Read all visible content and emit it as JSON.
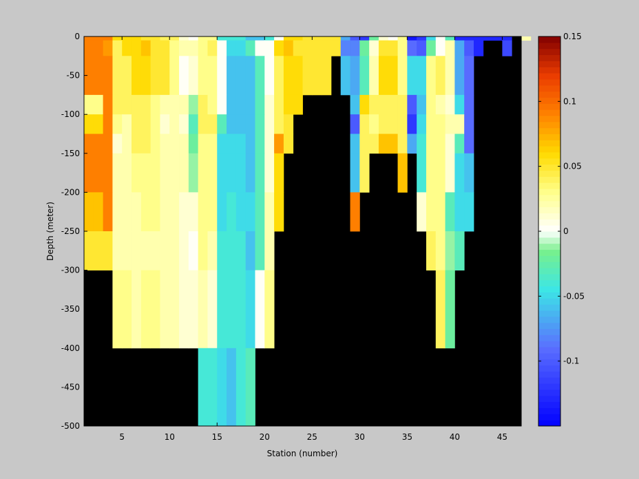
{
  "chart_data": {
    "type": "heatmap",
    "title": "",
    "xlabel": "Station (number)",
    "ylabel": "Depth (meter)",
    "xlim": [
      1,
      47
    ],
    "ylim": [
      -500,
      0
    ],
    "x_ticks": [
      5,
      10,
      15,
      20,
      25,
      30,
      35,
      40,
      45
    ],
    "y_ticks": [
      0,
      -50,
      -100,
      -150,
      -200,
      -250,
      -300,
      -350,
      -400,
      -450,
      -500
    ],
    "colorbar": {
      "range": [
        -0.15,
        0.15
      ],
      "ticks": [
        0.15,
        0.1,
        0.05,
        0,
        -0.05,
        -0.1
      ],
      "tick_labels": [
        "0.15",
        "0.1",
        "0.05",
        "0",
        "-0.05",
        "-0.1"
      ],
      "colormap": "jet-white-center",
      "levels": 64
    },
    "mask_color": "#000000",
    "grid": false,
    "row_depths": [
      -5,
      -25,
      -75,
      -100,
      -125,
      -150,
      -200,
      -250,
      -300,
      -400,
      -500
    ],
    "rows": [
      [
        0.09,
        0.09,
        0.09,
        0.06,
        0.06,
        0.06,
        0.05,
        0.05,
        0.04,
        0.04,
        0.01,
        0.0,
        0.03,
        0.03,
        -0.04,
        -0.04,
        -0.04,
        -0.06,
        -0.06,
        -0.04,
        0.0,
        0.06,
        0.06,
        0.05,
        0.05,
        0.05,
        0.05,
        -0.07,
        -0.1,
        -0.12,
        -0.02,
        0.01,
        0.0,
        0.03,
        -0.14,
        -0.12,
        -0.05,
        0.0,
        -0.03,
        -0.13,
        -0.13,
        -0.13,
        -0.13,
        -0.13,
        -0.13,
        null,
        0.02
      ],
      [
        0.09,
        0.09,
        0.08,
        0.04,
        0.06,
        0.06,
        0.07,
        0.05,
        0.05,
        0.03,
        0.02,
        0.02,
        0.03,
        0.04,
        0.0,
        -0.05,
        -0.05,
        -0.03,
        0.0,
        0.0,
        0.06,
        0.07,
        0.05,
        0.05,
        0.05,
        0.05,
        0.05,
        -0.08,
        -0.08,
        -0.02,
        0.01,
        0.05,
        0.05,
        0.03,
        -0.09,
        -0.1,
        -0.02,
        0.0,
        0.02,
        -0.07,
        -0.1,
        -0.13,
        null,
        null,
        -0.11,
        null,
        null
      ],
      [
        0.09,
        0.09,
        0.09,
        0.04,
        0.04,
        0.06,
        0.06,
        0.05,
        0.05,
        0.03,
        0.0,
        0.01,
        0.03,
        0.03,
        0.0,
        -0.06,
        -0.06,
        -0.06,
        -0.03,
        0.0,
        0.04,
        0.06,
        0.06,
        0.05,
        0.05,
        0.05,
        null,
        -0.06,
        -0.07,
        -0.03,
        0.02,
        0.06,
        0.06,
        0.03,
        -0.05,
        -0.05,
        0.03,
        0.04,
        0.02,
        -0.07,
        -0.09,
        null,
        null,
        null,
        null,
        null,
        null
      ],
      [
        0.03,
        0.03,
        0.09,
        0.04,
        0.04,
        0.04,
        0.04,
        0.03,
        0.02,
        0.02,
        0.02,
        -0.01,
        0.04,
        0.03,
        0.0,
        -0.06,
        -0.06,
        -0.06,
        -0.03,
        0.01,
        0.04,
        0.06,
        0.06,
        null,
        null,
        null,
        null,
        null,
        -0.06,
        0.06,
        0.04,
        0.04,
        0.04,
        0.04,
        -0.1,
        -0.06,
        0.03,
        0.02,
        0.01,
        -0.05,
        -0.09,
        null,
        null,
        null,
        null,
        null,
        null
      ],
      [
        0.06,
        0.06,
        0.09,
        0.03,
        0.02,
        0.04,
        0.04,
        0.03,
        0.01,
        0.02,
        0.01,
        -0.03,
        0.04,
        0.04,
        -0.03,
        -0.06,
        -0.06,
        -0.06,
        -0.03,
        0.01,
        0.04,
        0.05,
        null,
        null,
        null,
        null,
        null,
        null,
        -0.1,
        0.04,
        0.03,
        0.04,
        0.04,
        0.04,
        -0.12,
        -0.05,
        0.03,
        0.03,
        0.02,
        0.02,
        -0.09,
        null,
        null,
        null,
        null,
        null,
        null
      ],
      [
        0.09,
        0.09,
        0.09,
        0.01,
        0.02,
        0.04,
        0.04,
        0.03,
        0.02,
        0.02,
        0.02,
        -0.02,
        0.03,
        0.03,
        -0.05,
        -0.05,
        -0.05,
        -0.06,
        -0.03,
        0.01,
        0.08,
        0.05,
        null,
        null,
        null,
        null,
        null,
        null,
        -0.06,
        0.04,
        0.04,
        0.07,
        0.07,
        0.04,
        -0.07,
        -0.04,
        0.03,
        0.03,
        0.01,
        -0.03,
        -0.09,
        null,
        null,
        null,
        null,
        null,
        null
      ],
      [
        0.09,
        0.09,
        0.09,
        0.02,
        0.02,
        0.03,
        0.03,
        0.03,
        0.02,
        0.02,
        0.02,
        -0.01,
        0.03,
        0.03,
        -0.05,
        -0.05,
        -0.05,
        -0.06,
        -0.03,
        0.01,
        0.06,
        null,
        null,
        null,
        null,
        null,
        null,
        null,
        -0.06,
        0.04,
        null,
        null,
        null,
        0.07,
        null,
        -0.04,
        0.03,
        0.03,
        0.01,
        -0.05,
        -0.06,
        null,
        null,
        null,
        null,
        null,
        null
      ],
      [
        0.07,
        0.07,
        0.09,
        0.02,
        0.02,
        0.02,
        0.03,
        0.03,
        0.02,
        0.02,
        0.01,
        0.01,
        0.03,
        0.03,
        -0.05,
        -0.04,
        -0.05,
        -0.05,
        -0.03,
        0.02,
        0.06,
        null,
        null,
        null,
        null,
        null,
        null,
        null,
        0.09,
        null,
        null,
        null,
        null,
        null,
        null,
        0.01,
        0.03,
        0.03,
        -0.03,
        -0.05,
        -0.05,
        null,
        null,
        null,
        null,
        null,
        null
      ],
      [
        0.05,
        0.05,
        0.05,
        0.02,
        0.02,
        0.02,
        0.02,
        0.02,
        0.02,
        0.02,
        0.01,
        0.0,
        0.03,
        0.02,
        -0.04,
        -0.04,
        -0.04,
        -0.06,
        -0.03,
        0.02,
        null,
        null,
        null,
        null,
        null,
        null,
        null,
        null,
        null,
        null,
        null,
        null,
        null,
        null,
        null,
        null,
        0.04,
        0.03,
        -0.01,
        -0.03,
        null,
        null,
        null,
        null,
        null,
        null,
        null
      ],
      [
        null,
        null,
        null,
        0.03,
        0.03,
        0.02,
        0.03,
        0.03,
        0.02,
        0.02,
        0.01,
        0.01,
        0.02,
        0.01,
        -0.04,
        -0.04,
        -0.04,
        -0.05,
        0.0,
        0.03,
        null,
        null,
        null,
        null,
        null,
        null,
        null,
        null,
        null,
        null,
        null,
        null,
        null,
        null,
        null,
        null,
        null,
        0.04,
        -0.02,
        null,
        null,
        null,
        null,
        null,
        null,
        null,
        null
      ],
      [
        null,
        null,
        null,
        null,
        null,
        null,
        null,
        null,
        null,
        null,
        null,
        null,
        -0.04,
        -0.04,
        -0.05,
        -0.06,
        -0.04,
        -0.03,
        null,
        null,
        null,
        null,
        null,
        null,
        null,
        null,
        null,
        null,
        null,
        null,
        null,
        null,
        null,
        null,
        null,
        null,
        null,
        null,
        null,
        null,
        null,
        null,
        null,
        null,
        null,
        null,
        null
      ]
    ]
  }
}
